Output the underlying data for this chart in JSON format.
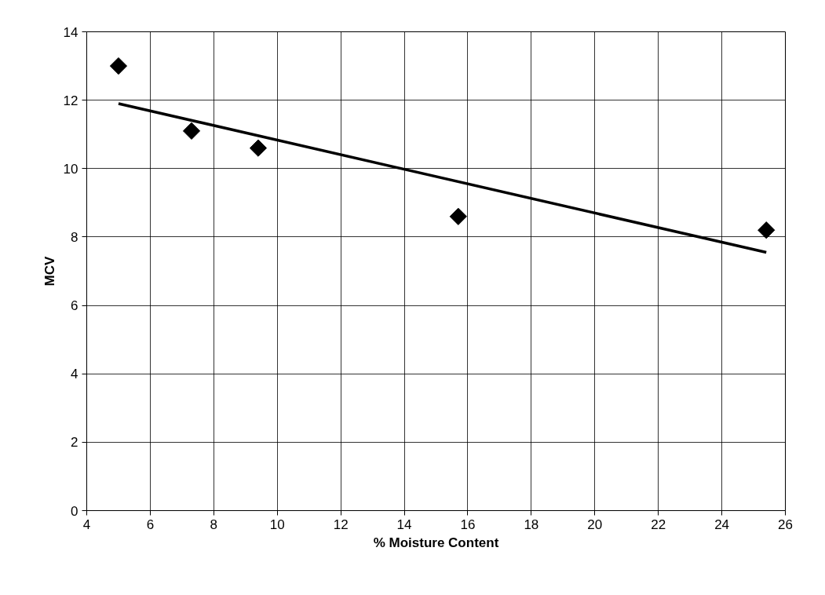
{
  "chart_data": {
    "type": "scatter",
    "xlabel": "% Moisture Content",
    "ylabel": "MCV",
    "xlim": [
      4,
      26
    ],
    "xticks": [
      4,
      6,
      8,
      10,
      12,
      14,
      16,
      18,
      20,
      22,
      24,
      26
    ],
    "ylim": [
      0,
      14
    ],
    "yticks": [
      0,
      2,
      4,
      6,
      8,
      10,
      12,
      14
    ],
    "grid": true,
    "marker": "diamond",
    "series": [
      {
        "color": "#000000",
        "x": [
          5,
          7.3,
          9.4,
          15.7,
          25.4
        ],
        "values": [
          13,
          11.1,
          10.6,
          8.6,
          8.2
        ]
      },
      {
        "type": "line",
        "color": "#000000",
        "x": [
          5,
          25.4
        ],
        "values": [
          11.9,
          7.55
        ],
        "marker": "none",
        "line_style": "solid"
      }
    ]
  }
}
